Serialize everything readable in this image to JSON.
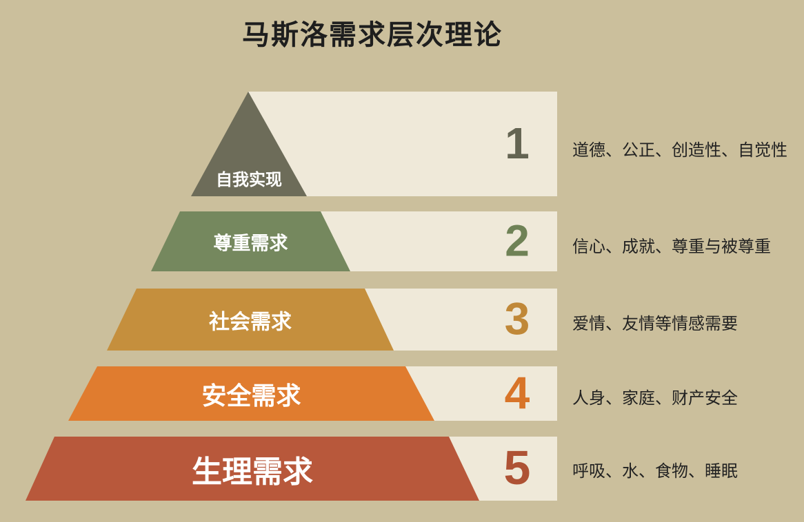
{
  "title": "马斯洛需求层次理论",
  "levels": [
    {
      "number": "1",
      "label": "自我实现",
      "description": "道德、公正、创造性、自觉性",
      "color": "#6d6c59",
      "number_color": "#646452"
    },
    {
      "number": "2",
      "label": "尊重需求",
      "description": "信心、成就、尊重与被尊重",
      "color": "#75885e",
      "number_color": "#6f8256"
    },
    {
      "number": "3",
      "label": "社会需求",
      "description": "爱情、友情等情感需要",
      "color": "#c58f3d",
      "number_color": "#c08838"
    },
    {
      "number": "4",
      "label": "安全需求",
      "description": "人身、家庭、财产安全",
      "color": "#e07c2f",
      "number_color": "#d87428"
    },
    {
      "number": "5",
      "label": "生理需求",
      "description": "呼吸、水、食物、睡眠",
      "color": "#b8583b",
      "number_color": "#ae5234"
    }
  ],
  "colors": {
    "background": "#cbbf9c",
    "band": "#efe9d9",
    "title": "#1e1e1e",
    "label": "#ffffff"
  }
}
